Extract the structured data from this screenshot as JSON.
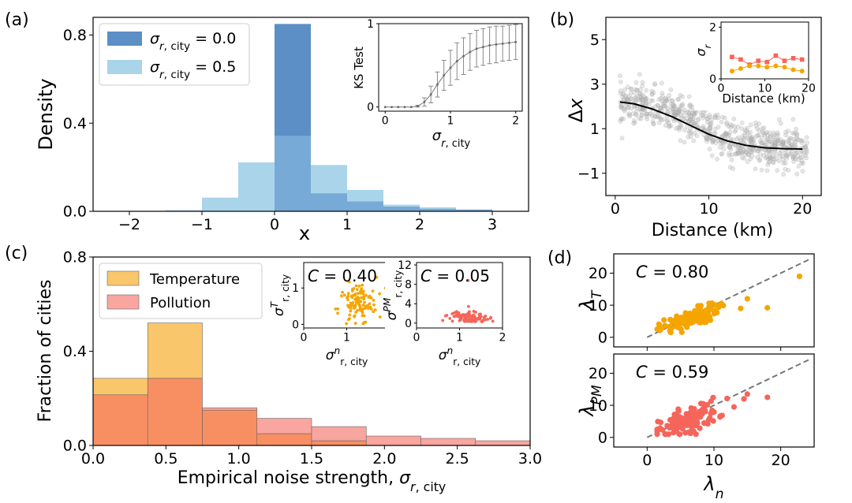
{
  "colors": {
    "dark_blue": "#5b8fc5",
    "light_blue": "#a9d4ea",
    "overlap_blue": "#77aad6",
    "orange": "#f5a500",
    "orange_hist": "#fac66c",
    "salmon": "#f5655a",
    "salmon_hist": "#f9a5a0",
    "overlap_hist": "#f88f62",
    "scatter_gray": "#b8b8b8"
  },
  "chart_data": [
    {
      "panel": "(a)",
      "type": "bar",
      "title": "",
      "xlabel": "x",
      "ylabel": "Density",
      "xlim": [
        -2.5,
        3.5
      ],
      "ylim": [
        0,
        0.88
      ],
      "xticks": [
        "−2",
        "−1",
        "0",
        "1",
        "2",
        "3"
      ],
      "yticks": [
        "0.0",
        "0.4",
        "0.8"
      ],
      "bin_width": 0.5,
      "series": [
        {
          "name": "σ_{r, city} = 0.0",
          "legend_label": "σr, city = 0.0",
          "bins": [
            {
              "x0": -1.5,
              "h": 0.002
            },
            {
              "x0": -1.0,
              "h": 0.002
            },
            {
              "x0": -0.5,
              "h": 0.002
            },
            {
              "x0": 0.0,
              "h": 0.85
            },
            {
              "x0": 0.5,
              "h": 0.082
            },
            {
              "x0": 1.0,
              "h": 0.045
            },
            {
              "x0": 1.5,
              "h": 0.022
            },
            {
              "x0": 2.0,
              "h": 0.012
            },
            {
              "x0": 2.5,
              "h": 0.008
            }
          ]
        },
        {
          "name": "σ_{r, city} = 0.5",
          "legend_label": "σr, city = 0.5",
          "bins": [
            {
              "x0": -1.5,
              "h": 0.005
            },
            {
              "x0": -1.0,
              "h": 0.062
            },
            {
              "x0": -0.5,
              "h": 0.222
            },
            {
              "x0": 0.0,
              "h": 0.342
            },
            {
              "x0": 0.5,
              "h": 0.21
            },
            {
              "x0": 1.0,
              "h": 0.097
            },
            {
              "x0": 1.5,
              "h": 0.03
            },
            {
              "x0": 2.0,
              "h": 0.018
            },
            {
              "x0": 2.5,
              "h": 0.008
            }
          ]
        }
      ],
      "inset": {
        "type": "line",
        "ylabel": "KS Test",
        "xlabel": "σr, city",
        "xlim": [
          -0.1,
          2.1
        ],
        "ylim": [
          -0.05,
          1.0
        ],
        "xticks": [
          "0",
          "1",
          "2"
        ],
        "yticks": [
          "0",
          "1"
        ],
        "x": [
          0.0,
          0.1,
          0.2,
          0.3,
          0.4,
          0.5,
          0.6,
          0.7,
          0.8,
          0.9,
          1.0,
          1.1,
          1.2,
          1.3,
          1.4,
          1.5,
          1.6,
          1.7,
          1.8,
          1.9,
          2.0
        ],
        "y": [
          0.0,
          0.0,
          0.0,
          0.0,
          0.0,
          0.01,
          0.06,
          0.15,
          0.27,
          0.38,
          0.47,
          0.55,
          0.61,
          0.66,
          0.7,
          0.72,
          0.74,
          0.75,
          0.76,
          0.77,
          0.78
        ],
        "err": [
          0.0,
          0.0,
          0.0,
          0.0,
          0.0,
          0.01,
          0.05,
          0.1,
          0.15,
          0.18,
          0.21,
          0.22,
          0.22,
          0.22,
          0.22,
          0.22,
          0.22,
          0.22,
          0.21,
          0.21,
          0.21
        ]
      }
    },
    {
      "panel": "(b)",
      "type": "scatter",
      "xlabel": "Distance (km)",
      "ylabel": "Δx",
      "xlim": [
        -1,
        22
      ],
      "ylim": [
        -2.0,
        6.0
      ],
      "xticks": [
        "0",
        "10",
        "20"
      ],
      "yticks": [
        "−1",
        "1",
        "3",
        "5"
      ],
      "fit_curve": {
        "form": "sigmoid",
        "x": [
          0.5,
          2,
          4,
          6,
          8,
          10,
          12,
          14,
          16,
          18,
          20
        ],
        "y": [
          2.2,
          2.12,
          1.88,
          1.55,
          1.15,
          0.75,
          0.45,
          0.25,
          0.14,
          0.1,
          0.09
        ]
      },
      "point_cloud": {
        "count": 700,
        "x_range": [
          0.5,
          20.5
        ],
        "spread_sd": 0.45
      },
      "inset": {
        "type": "line",
        "ylabel": "σr",
        "xlabel": "Distance (km)",
        "xlim": [
          0,
          20
        ],
        "ylim": [
          0,
          2.2
        ],
        "xticks": [
          "0",
          "10",
          "20"
        ],
        "yticks": [
          "0",
          "2"
        ],
        "series": [
          {
            "name": "Pollution",
            "marker": "square",
            "x": [
              2.5,
              4.5,
              6.5,
              8.5,
              10.5,
              12.5,
              14.5,
              16.5,
              18.5
            ],
            "y": [
              0.85,
              0.75,
              0.55,
              0.7,
              0.65,
              0.9,
              0.7,
              0.8,
              0.75
            ]
          },
          {
            "name": "Temperature",
            "marker": "circle",
            "x": [
              2.5,
              4.5,
              6.5,
              8.5,
              10.5,
              12.5,
              14.5,
              16.5,
              18.5
            ],
            "y": [
              0.3,
              0.4,
              0.5,
              0.5,
              0.45,
              0.5,
              0.45,
              0.35,
              0.3
            ]
          }
        ]
      }
    },
    {
      "panel": "(c)",
      "type": "bar",
      "xlabel": "Empirical noise strength, σr, city",
      "ylabel": "Fraction of cities",
      "xlim": [
        0,
        3.0
      ],
      "ylim": [
        0,
        0.8
      ],
      "xticks": [
        "0.0",
        "0.5",
        "1.0",
        "1.5",
        "2.0",
        "2.5",
        "3.0"
      ],
      "yticks": [
        "0.0",
        "0.4",
        "0.8"
      ],
      "bin_edges": [
        0.0,
        0.375,
        0.75,
        1.125,
        1.5,
        1.875,
        2.25,
        2.625,
        3.0
      ],
      "series": [
        {
          "name": "Temperature",
          "values": [
            0.285,
            0.52,
            0.15,
            0.05,
            0.02,
            0.0,
            0.0,
            0.0
          ]
        },
        {
          "name": "Pollution",
          "values": [
            0.215,
            0.285,
            0.16,
            0.115,
            0.08,
            0.04,
            0.03,
            0.02
          ]
        }
      ],
      "insets": [
        {
          "annotation": "C = 0.40",
          "ylabel": "σTr, city",
          "xlabel": "σnr, city",
          "xlim": [
            0,
            2
          ],
          "ylim": [
            -0.1,
            1.7
          ],
          "xticks": [
            "0",
            "1",
            "2"
          ],
          "yticks": [
            "0",
            "1"
          ],
          "color_key": "orange"
        },
        {
          "annotation": "C = 0.05",
          "ylabel": "σPMr, city",
          "xlabel": "σnr, city",
          "xlim": [
            0,
            2
          ],
          "ylim": [
            -1,
            12.5
          ],
          "xticks": [
            "0",
            "1",
            "2"
          ],
          "yticks": [
            "0",
            "4",
            "8",
            "12"
          ],
          "color_key": "salmon"
        }
      ]
    },
    {
      "panel": "(d)",
      "type": "scatter",
      "xlabel": "λn",
      "xlim": [
        -5,
        25
      ],
      "xticks": [
        "0",
        "10",
        "20"
      ],
      "subplots": [
        {
          "ylabel": "λT",
          "annotation": "C = 0.80",
          "ylim": [
            -3,
            26
          ],
          "yticks": [
            "0",
            "10",
            "20"
          ],
          "color_key": "orange",
          "outliers": [
            [
              22.8,
              19.0
            ],
            [
              18.0,
              9.2
            ],
            [
              15.0,
              12.0
            ],
            [
              14.0,
              9.0
            ]
          ]
        },
        {
          "ylabel": "λPM",
          "annotation": "C = 0.59",
          "ylim": [
            -3,
            26
          ],
          "yticks": [
            "0",
            "10",
            "20"
          ],
          "color_key": "salmon",
          "outliers": [
            [
              18.0,
              12.5
            ],
            [
              15.0,
              13.5
            ],
            [
              14.5,
              12.0
            ],
            [
              13.0,
              9.5
            ]
          ]
        }
      ]
    }
  ],
  "labels": {
    "panel_a": "(a)",
    "panel_b": "(b)",
    "panel_c": "(c)",
    "panel_d": "(d)",
    "a_legend_0": "= 0.0",
    "a_legend_1": "= 0.5",
    "c_legend_0": "Temperature",
    "c_legend_1": "Pollution"
  }
}
